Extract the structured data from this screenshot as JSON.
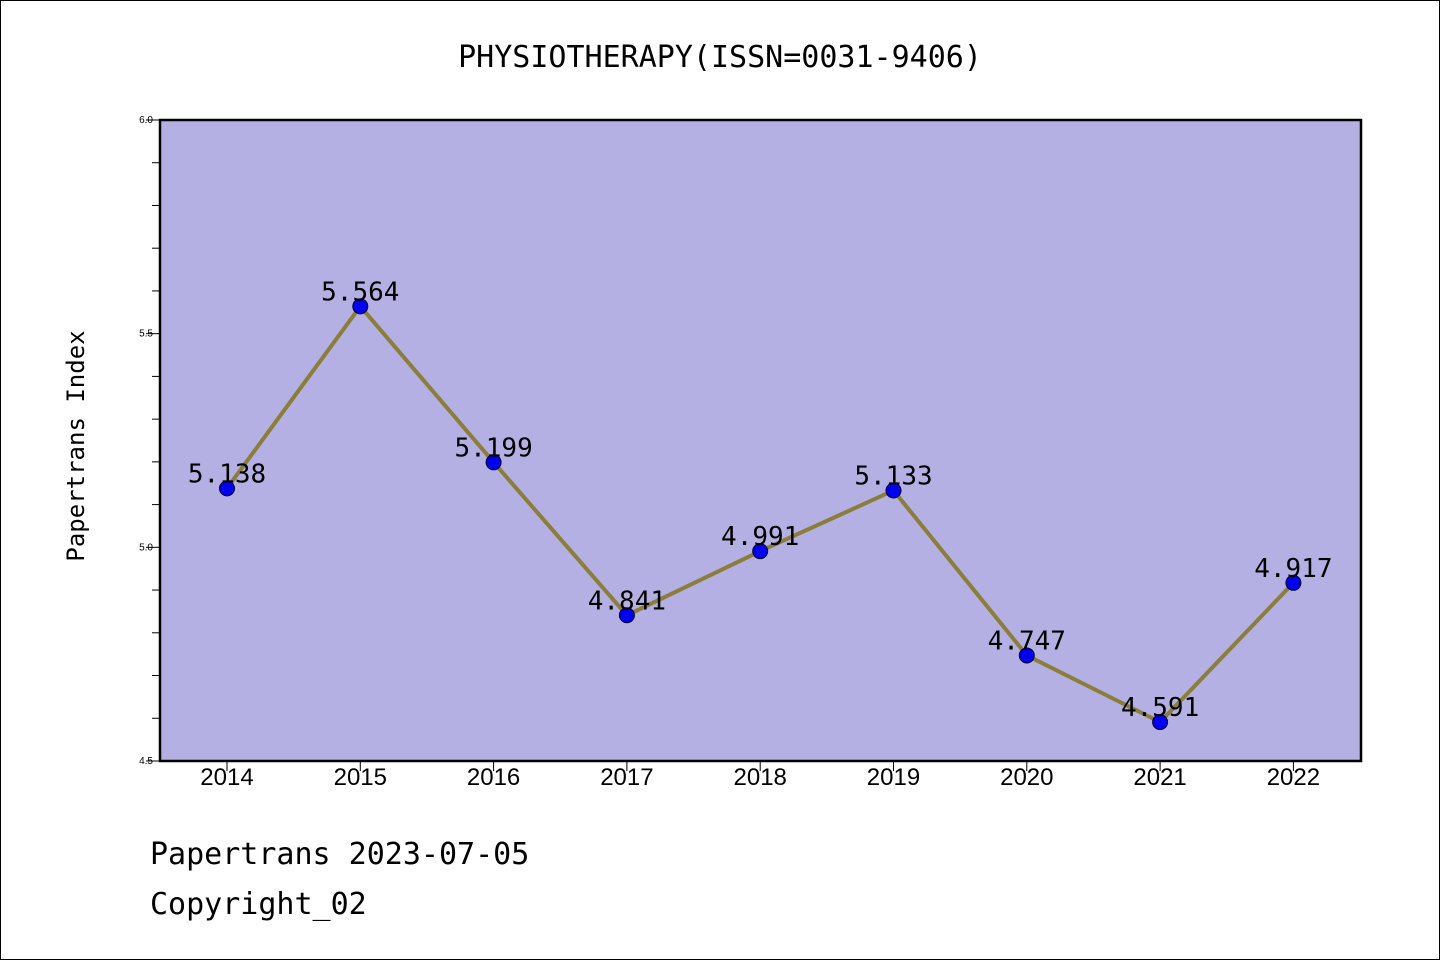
{
  "chart_data": {
    "type": "line",
    "title": "PHYSIOTHERAPY(ISSN=0031-9406)",
    "ylabel": "Papertrans Index",
    "xlabel": "",
    "categories": [
      "2014",
      "2015",
      "2016",
      "2017",
      "2018",
      "2019",
      "2020",
      "2021",
      "2022"
    ],
    "values": [
      5.138,
      5.564,
      5.199,
      4.841,
      4.991,
      5.133,
      4.747,
      4.591,
      4.917
    ],
    "data_labels": [
      "5.138",
      "5.564",
      "5.199",
      "4.841",
      "4.991",
      "5.133",
      "4.747",
      "4.591",
      "4.917"
    ],
    "ylim": [
      4.5,
      6.0
    ],
    "yticks": [
      "4.5",
      "5.0",
      "5.5",
      "6.0"
    ],
    "grid": false,
    "colors": {
      "plot_background": "#b5b0e3",
      "line": "#8b7d3a",
      "marker": "#0000ee"
    }
  },
  "footer": {
    "line1": "Papertrans 2023-07-05",
    "line2": "Copyright_02"
  }
}
